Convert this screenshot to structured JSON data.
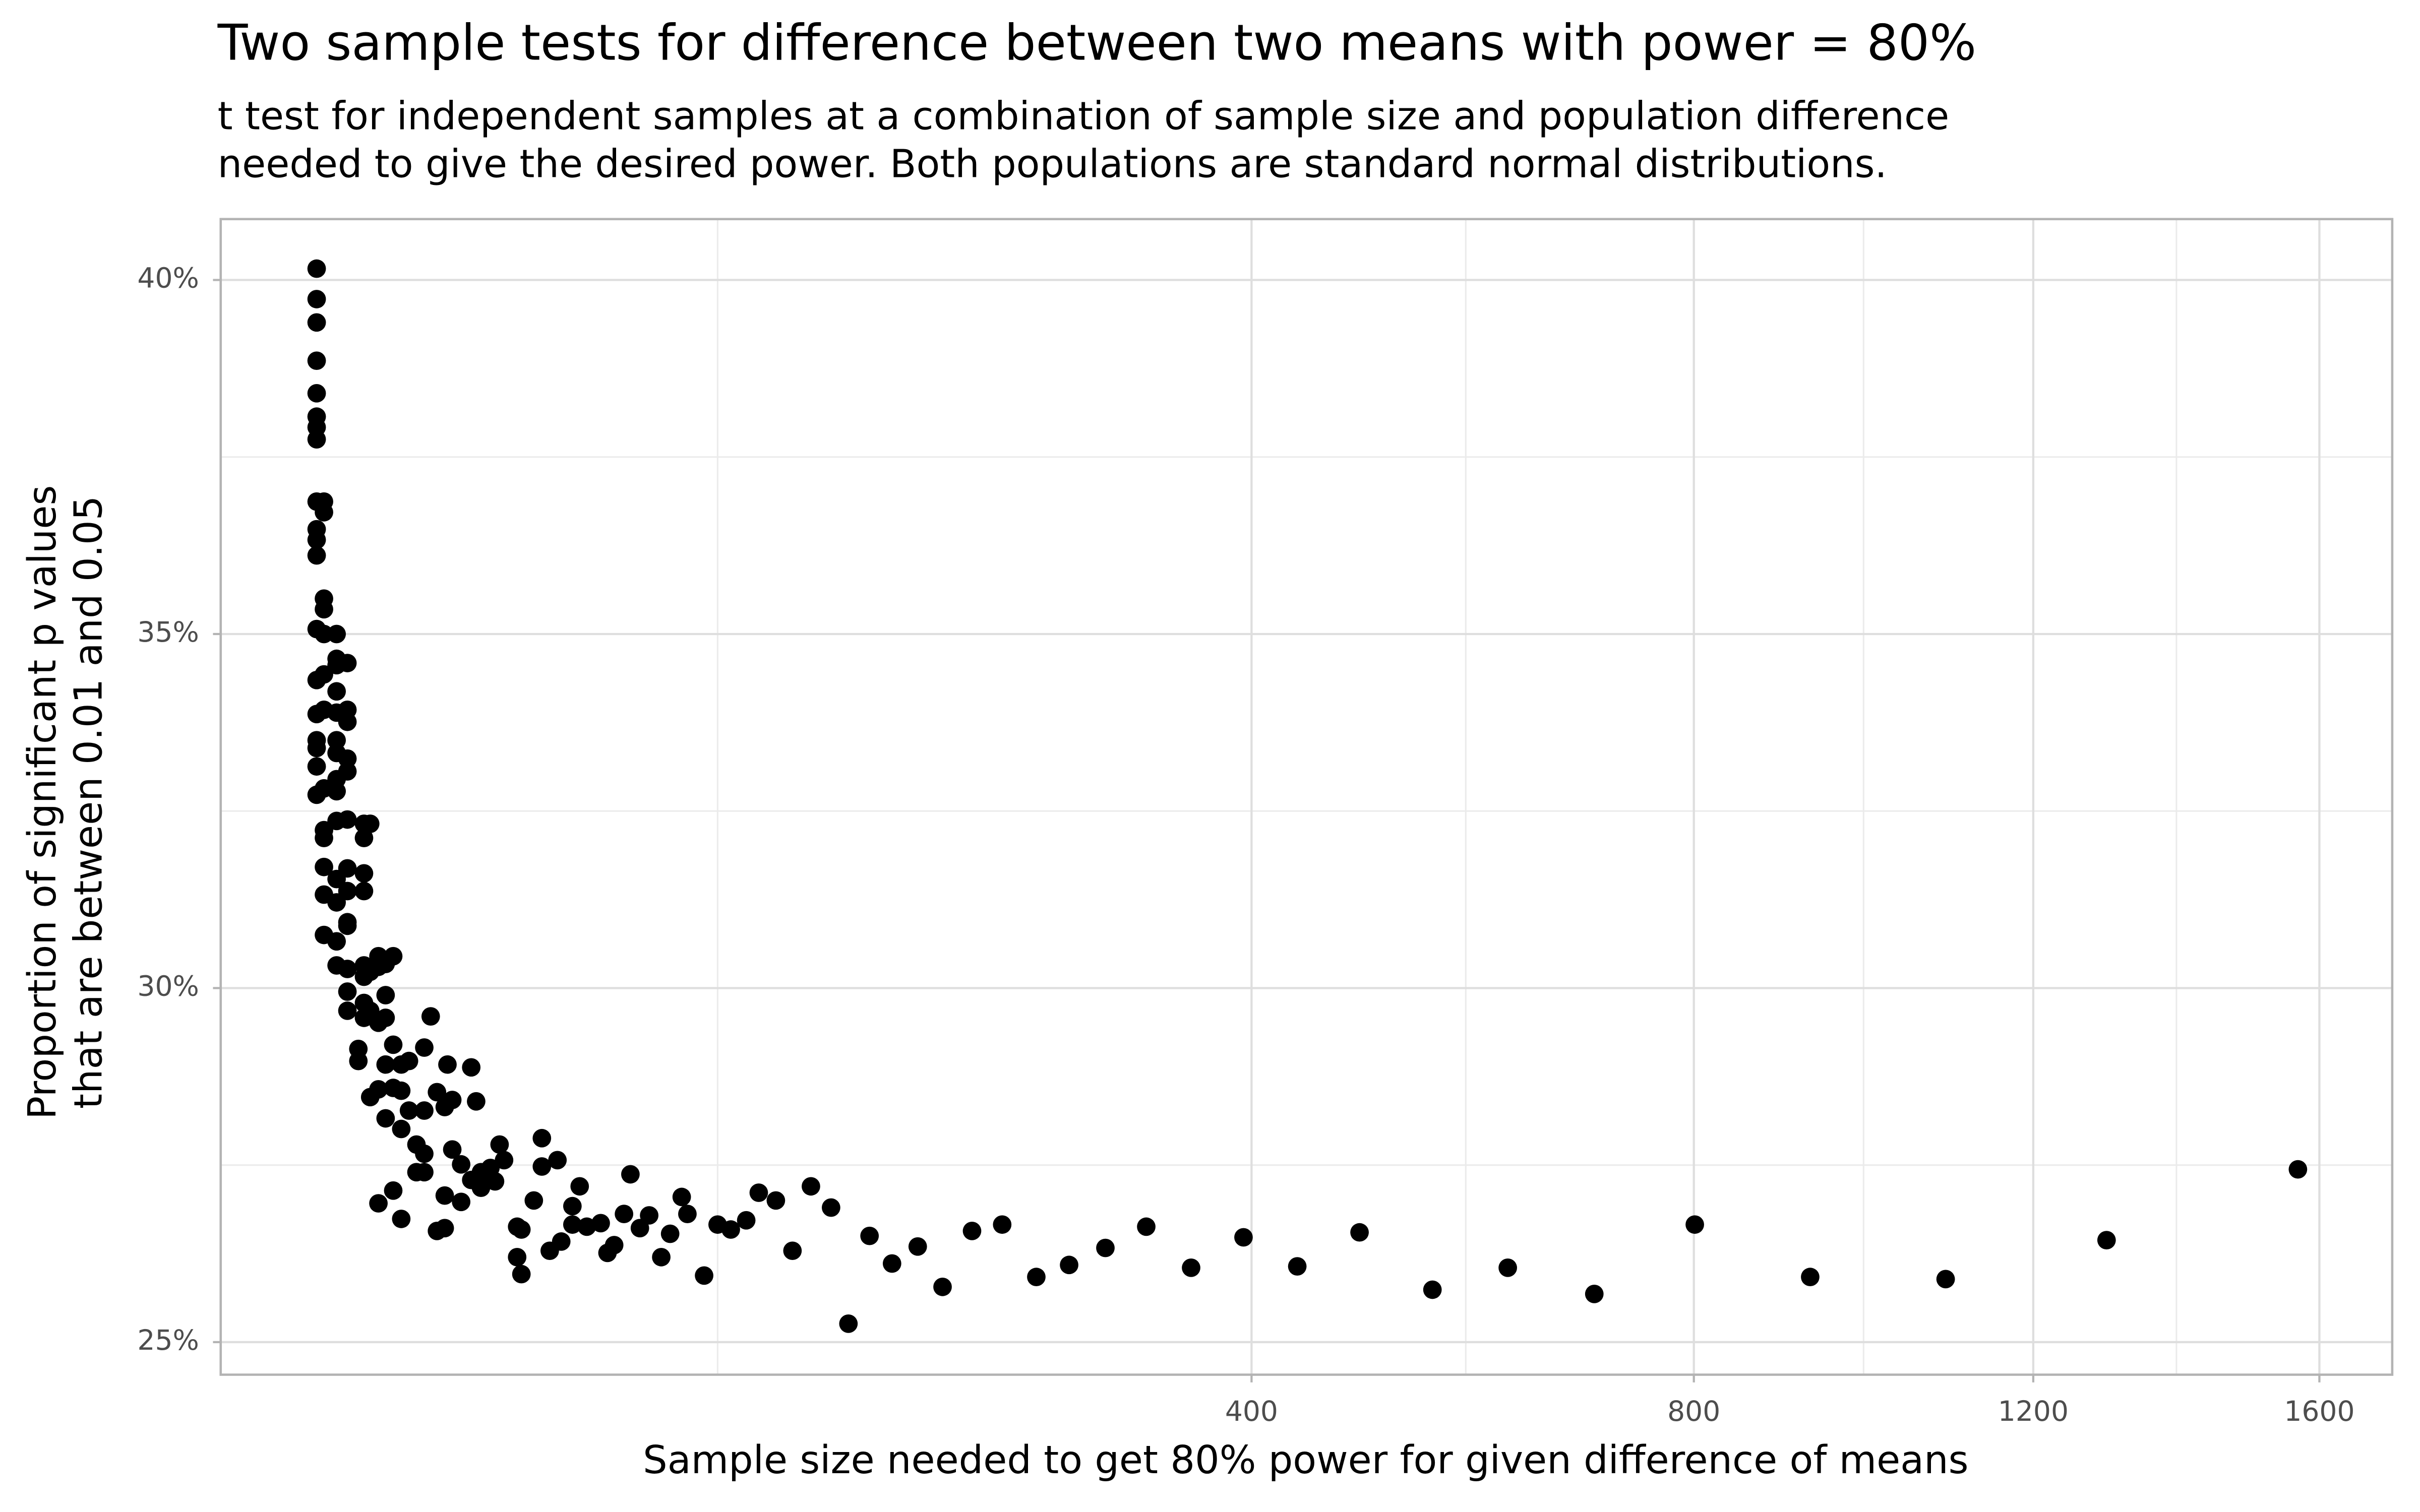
{
  "chart_data": {
    "type": "scatter",
    "title": "Two sample tests for difference between two means with power = 80%",
    "subtitle": [
      "t test for independent samples at a combination of sample size and population difference",
      "needed to give the desired power. Both populations are standard normal distributions."
    ],
    "x_label": "Sample size needed to get 80% power for given difference of means",
    "y_label": [
      "Proportion of significant p values",
      "that are between 0.01 and 0.05"
    ],
    "xscale": "sqrt",
    "xlim": [
      0.48,
      1711
    ],
    "ylim": [
      24.54,
      40.86
    ],
    "xticks": [
      400,
      800,
      1200,
      1600
    ],
    "xminor": [
      100,
      576.6,
      989.9,
      1393
    ],
    "yticks": [
      {
        "value": 25,
        "label": "25%"
      },
      {
        "value": 30,
        "label": "30%"
      },
      {
        "value": 35,
        "label": "35%"
      },
      {
        "value": 40,
        "label": "40%"
      }
    ],
    "yminor": [
      27.5,
      32.5,
      37.5
    ],
    "grid": true,
    "series": [
      {
        "color": "#000000",
        "x": [
          6.2,
          6.2,
          6.2,
          6.2,
          6.2,
          6.2,
          6.2,
          6.2,
          6.2,
          6.2,
          6.2,
          6.2,
          6.2,
          6.2,
          6.2,
          6.2,
          6.2,
          6.2,
          6.2,
          6.9,
          6.9,
          6.9,
          6.9,
          6.9,
          6.9,
          6.9,
          6.9,
          6.9,
          6.9,
          6.9,
          6.9,
          6.9,
          8.2,
          8.2,
          8.2,
          8.2,
          8.2,
          8.2,
          8.2,
          8.2,
          8.2,
          8.2,
          8.2,
          8.2,
          8.2,
          8.2,
          9.4,
          9.4,
          9.4,
          9.4,
          9.4,
          9.4,
          9.4,
          9.4,
          9.4,
          9.4,
          9.4,
          9.4,
          9.4,
          10.7,
          10.7,
          11.4,
          11.4,
          11.4,
          11.4,
          11.4,
          11.4,
          11.4,
          11.4,
          12.2,
          12.2,
          12.2,
          12.2,
          13.3,
          13.3,
          13.3,
          13.3,
          13.3,
          14.3,
          14.3,
          14.3,
          14.3,
          14.3,
          15.4,
          15.4,
          15.4,
          15.4,
          16.6,
          16.6,
          16.6,
          16.6,
          17.8,
          17.8,
          19,
          19,
          20.3,
          20.3,
          20.3,
          20.3,
          21.4,
          22.5,
          22.5,
          23.9,
          23.9,
          23.9,
          24.4,
          25.3,
          25.3,
          27,
          27,
          29,
          29,
          30,
          31,
          31,
          33,
          34,
          35,
          36,
          39,
          39,
          40,
          40,
          43,
          45,
          45,
          47,
          49,
          50,
          53,
          53,
          55,
          57,
          61,
          63,
          65,
          68,
          70,
          73,
          76,
          80,
          83,
          87,
          89,
          95,
          100,
          105,
          111,
          116,
          123,
          130,
          138,
          147,
          155,
          165,
          176,
          189,
          202,
          218,
          235,
          255,
          275,
          298,
          325,
          356,
          394,
          435,
          485,
          547,
          615,
          698,
          801,
          928,
          1089,
          1297,
          1568
        ],
        "values": [
          40.16,
          39.73,
          39.4,
          38.86,
          38.4,
          38.07,
          37.92,
          37.75,
          36.87,
          36.48,
          36.33,
          36.11,
          35.07,
          34.35,
          33.87,
          33.5,
          33.39,
          33.13,
          32.73,
          36.87,
          36.72,
          35.5,
          35.35,
          35.0,
          34.43,
          33.93,
          32.82,
          32.23,
          32.12,
          31.71,
          31.32,
          30.75,
          35.0,
          34.65,
          34.56,
          34.19,
          33.89,
          33.5,
          33.32,
          32.95,
          32.78,
          32.36,
          31.54,
          31.21,
          30.66,
          30.32,
          34.59,
          33.93,
          33.76,
          33.24,
          33.06,
          32.38,
          31.69,
          31.37,
          30.93,
          30.88,
          30.27,
          29.95,
          29.68,
          29.14,
          28.97,
          32.32,
          32.12,
          31.62,
          31.37,
          30.32,
          30.16,
          29.79,
          29.58,
          32.32,
          30.23,
          29.68,
          28.46,
          30.45,
          30.3,
          29.51,
          28.57,
          26.96,
          30.34,
          29.9,
          29.58,
          28.92,
          28.16,
          30.45,
          29.2,
          28.59,
          27.14,
          28.92,
          28.55,
          28.01,
          26.74,
          28.97,
          28.27,
          27.79,
          27.4,
          29.16,
          28.27,
          27.66,
          27.4,
          29.6,
          28.53,
          26.57,
          28.32,
          27.07,
          26.61,
          28.92,
          27.72,
          28.42,
          27.51,
          26.98,
          27.29,
          28.88,
          28.4,
          27.4,
          27.18,
          27.46,
          27.27,
          27.79,
          27.57,
          26.63,
          26.2,
          26.59,
          25.96,
          27.0,
          27.88,
          27.48,
          26.29,
          27.57,
          26.42,
          26.92,
          26.66,
          27.2,
          26.63,
          26.68,
          26.26,
          26.37,
          26.81,
          27.37,
          26.61,
          26.79,
          26.2,
          26.53,
          27.05,
          26.81,
          25.94,
          26.66,
          26.59,
          26.72,
          27.11,
          27.0,
          26.29,
          27.2,
          26.9,
          25.26,
          26.5,
          26.11,
          26.35,
          25.78,
          26.57,
          26.66,
          25.92,
          26.09,
          26.33,
          26.63,
          26.05,
          26.48,
          26.07,
          26.55,
          25.74,
          26.05,
          25.68,
          26.66,
          25.92,
          25.89,
          26.44,
          27.44
        ]
      }
    ]
  }
}
